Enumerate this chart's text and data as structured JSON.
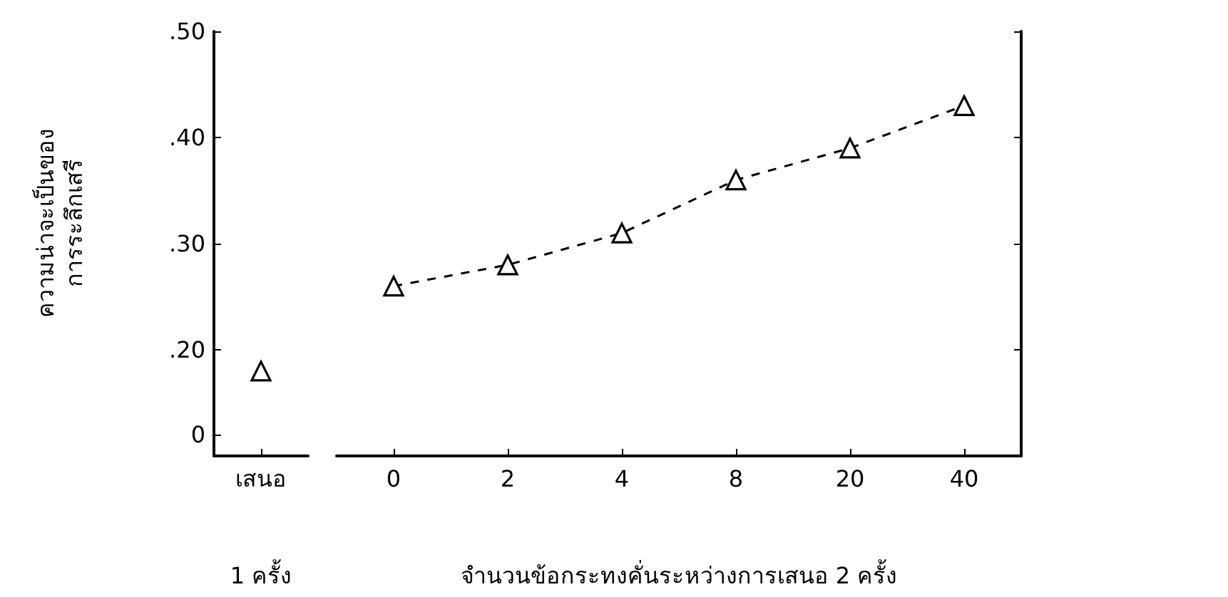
{
  "chart_data": [
    {
      "type": "scatter",
      "categories": [
        "เสนอ"
      ],
      "xlabel": "1 ครั้ง",
      "ylabel": "ความน่าจะเป็นของ\nการระลึกเสรี",
      "values": [
        0.18
      ],
      "color": "#000000",
      "marker": "triangle",
      "ylim": [
        0.1,
        0.5
      ],
      "yticks": [
        {
          "value": 0.12,
          "label": "0"
        },
        {
          "value": 0.2,
          "label": ".20"
        },
        {
          "value": 0.3,
          "label": ".30"
        },
        {
          "value": 0.4,
          "label": ".40"
        },
        {
          "value": 0.5,
          "label": ".50"
        }
      ],
      "grid": false
    },
    {
      "type": "line",
      "categories": [
        "0",
        "2",
        "4",
        "8",
        "20",
        "40"
      ],
      "xlabel": "จำนวนข้อกระทงคั่นระหว่างการเสนอ 2 ครั้ง",
      "values": [
        0.26,
        0.28,
        0.31,
        0.36,
        0.39,
        0.43
      ],
      "color": "#000000",
      "marker": "triangle",
      "line_style": "dashed",
      "ylim": [
        0.1,
        0.5
      ],
      "yticks": [
        0.2,
        0.3,
        0.4,
        0.5
      ],
      "tick_labels": "x",
      "grid": false
    }
  ]
}
